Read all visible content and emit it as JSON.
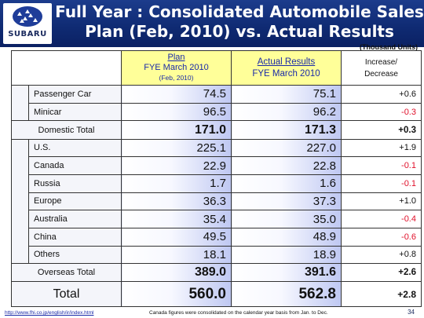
{
  "header": {
    "logo_text": "SUBARU",
    "title_line1": "Full Year : Consolidated Automobile Sales",
    "title_line2": "Plan (Feb, 2010) vs. Actual Results"
  },
  "units": "(Thousand Units)",
  "table": {
    "col_plan": {
      "line1": "Plan",
      "line2": "FYE March 2010",
      "line3": "(Feb, 2010)"
    },
    "col_actual": {
      "line1": "Actual Results",
      "line2": "FYE March 2010"
    },
    "col_inc": {
      "line1": "Increase/",
      "line2": "Decrease"
    },
    "domestic": [
      {
        "label": "Passenger Car",
        "plan": "74.5",
        "actual": "75.1",
        "change": "+0.6"
      },
      {
        "label": "Minicar",
        "plan": "96.5",
        "actual": "96.2",
        "change": "-0.3"
      }
    ],
    "domestic_total": {
      "label": "Domestic Total",
      "plan": "171.0",
      "actual": "171.3",
      "change": "+0.3"
    },
    "overseas": [
      {
        "label": "U.S.",
        "plan": "225.1",
        "actual": "227.0",
        "change": "+1.9"
      },
      {
        "label": "Canada",
        "plan": "22.9",
        "actual": "22.8",
        "change": "-0.1"
      },
      {
        "label": "Russia",
        "plan": "1.7",
        "actual": "1.6",
        "change": "-0.1"
      },
      {
        "label": "Europe",
        "plan": "36.3",
        "actual": "37.3",
        "change": "+1.0"
      },
      {
        "label": "Australia",
        "plan": "35.4",
        "actual": "35.0",
        "change": "-0.4"
      },
      {
        "label": "China",
        "plan": "49.5",
        "actual": "48.9",
        "change": "-0.6"
      },
      {
        "label": "Others",
        "plan": "18.1",
        "actual": "18.9",
        "change": "+0.8"
      }
    ],
    "overseas_total": {
      "label": "Overseas Total",
      "plan": "389.0",
      "actual": "391.6",
      "change": "+2.6"
    },
    "grand_total": {
      "label": "Total",
      "plan": "560.0",
      "actual": "562.8",
      "change": "+2.8"
    }
  },
  "footer": {
    "url": "http://www.fhi.co.jp/english/ir/index.html",
    "note": "Canada figures were consolidated on the calendar year basis from Jan. to Dec.",
    "page_number": "34"
  },
  "colors": {
    "header_bg": "#0f2a72",
    "negative": "#e0102a",
    "header_cell": "#ffff99",
    "value_gradient_end": "#bfc8f2"
  }
}
